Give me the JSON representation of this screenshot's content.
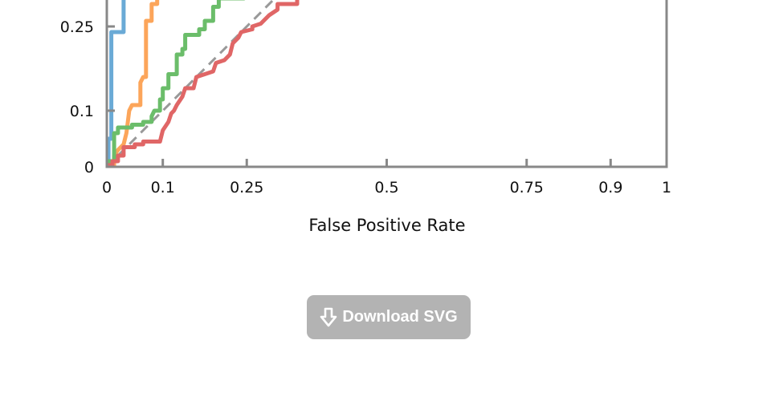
{
  "chart_data": {
    "type": "line",
    "xlabel": "False Positive Rate",
    "ylabel": "",
    "xlim": [
      0,
      1
    ],
    "ylim_visible": [
      0,
      0.3
    ],
    "x_ticks": [
      {
        "value": 0,
        "label": "0"
      },
      {
        "value": 0.1,
        "label": "0.1"
      },
      {
        "value": 0.25,
        "label": "0.25"
      },
      {
        "value": 0.5,
        "label": "0.5"
      },
      {
        "value": 0.75,
        "label": "0.75"
      },
      {
        "value": 0.9,
        "label": "0.9"
      },
      {
        "value": 1,
        "label": "1"
      }
    ],
    "y_ticks": [
      {
        "value": 0,
        "label": "0"
      },
      {
        "value": 0.1,
        "label": "0.1"
      },
      {
        "value": 0.25,
        "label": "0.25"
      }
    ],
    "grid": false,
    "reference_line": {
      "style": "dashed",
      "color": "#999999",
      "points": [
        [
          0,
          0
        ],
        [
          1,
          1
        ]
      ]
    },
    "series": [
      {
        "color": "#6aaad6",
        "points": [
          [
            0,
            0
          ],
          [
            0.003,
            0
          ],
          [
            0.003,
            0.05
          ],
          [
            0.008,
            0.05
          ],
          [
            0.008,
            0.24
          ],
          [
            0.03,
            0.24
          ],
          [
            0.03,
            0.3
          ]
        ]
      },
      {
        "color": "#fca55a",
        "points": [
          [
            0.003,
            0
          ],
          [
            0.013,
            0
          ],
          [
            0.013,
            0.02
          ],
          [
            0.02,
            0.03
          ],
          [
            0.03,
            0.04
          ],
          [
            0.035,
            0.06
          ],
          [
            0.04,
            0.1
          ],
          [
            0.045,
            0.11
          ],
          [
            0.06,
            0.11
          ],
          [
            0.06,
            0.15
          ],
          [
            0.065,
            0.16
          ],
          [
            0.07,
            0.16
          ],
          [
            0.07,
            0.26
          ],
          [
            0.08,
            0.26
          ],
          [
            0.08,
            0.29
          ],
          [
            0.09,
            0.29
          ],
          [
            0.09,
            0.3
          ]
        ]
      },
      {
        "color": "#6bbd6a",
        "points": [
          [
            0,
            0.01
          ],
          [
            0.013,
            0.01
          ],
          [
            0.013,
            0.06
          ],
          [
            0.02,
            0.06
          ],
          [
            0.02,
            0.07
          ],
          [
            0.045,
            0.07
          ],
          [
            0.045,
            0.075
          ],
          [
            0.065,
            0.075
          ],
          [
            0.065,
            0.08
          ],
          [
            0.08,
            0.08
          ],
          [
            0.08,
            0.09
          ],
          [
            0.085,
            0.1
          ],
          [
            0.095,
            0.1
          ],
          [
            0.095,
            0.12
          ],
          [
            0.1,
            0.12
          ],
          [
            0.1,
            0.14
          ],
          [
            0.11,
            0.14
          ],
          [
            0.11,
            0.165
          ],
          [
            0.125,
            0.165
          ],
          [
            0.125,
            0.2
          ],
          [
            0.135,
            0.2
          ],
          [
            0.135,
            0.21
          ],
          [
            0.14,
            0.21
          ],
          [
            0.14,
            0.235
          ],
          [
            0.165,
            0.235
          ],
          [
            0.165,
            0.245
          ],
          [
            0.175,
            0.245
          ],
          [
            0.175,
            0.26
          ],
          [
            0.19,
            0.26
          ],
          [
            0.19,
            0.285
          ],
          [
            0.2,
            0.285
          ],
          [
            0.2,
            0.3
          ],
          [
            0.245,
            0.3
          ]
        ]
      },
      {
        "color": "#e06666",
        "points": [
          [
            0,
            0.003
          ],
          [
            0.01,
            0.003
          ],
          [
            0.01,
            0.01
          ],
          [
            0.02,
            0.01
          ],
          [
            0.02,
            0.02
          ],
          [
            0.03,
            0.02
          ],
          [
            0.03,
            0.035
          ],
          [
            0.05,
            0.035
          ],
          [
            0.05,
            0.04
          ],
          [
            0.065,
            0.04
          ],
          [
            0.065,
            0.045
          ],
          [
            0.095,
            0.045
          ],
          [
            0.1,
            0.065
          ],
          [
            0.11,
            0.08
          ],
          [
            0.115,
            0.095
          ],
          [
            0.12,
            0.1
          ],
          [
            0.125,
            0.11
          ],
          [
            0.135,
            0.125
          ],
          [
            0.14,
            0.14
          ],
          [
            0.155,
            0.14
          ],
          [
            0.16,
            0.16
          ],
          [
            0.175,
            0.165
          ],
          [
            0.19,
            0.17
          ],
          [
            0.195,
            0.185
          ],
          [
            0.21,
            0.19
          ],
          [
            0.22,
            0.2
          ],
          [
            0.225,
            0.22
          ],
          [
            0.235,
            0.23
          ],
          [
            0.24,
            0.24
          ],
          [
            0.26,
            0.245
          ],
          [
            0.26,
            0.25
          ],
          [
            0.275,
            0.255
          ],
          [
            0.29,
            0.27
          ],
          [
            0.305,
            0.28
          ],
          [
            0.305,
            0.29
          ],
          [
            0.34,
            0.29
          ],
          [
            0.34,
            0.3
          ]
        ]
      }
    ]
  },
  "download_button": {
    "label": "Download SVG",
    "icon": "download-arrow-icon",
    "background": "#b3b3b3"
  }
}
